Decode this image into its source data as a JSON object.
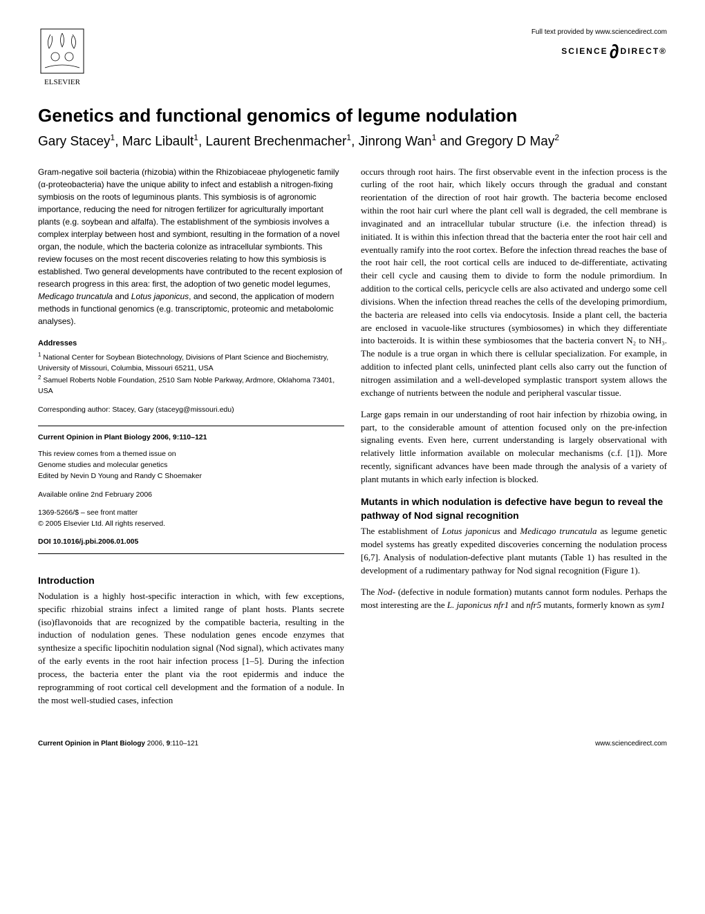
{
  "header": {
    "sd_fulltext": "Full text provided by www.sciencedirect.com",
    "sd_science": "SCIENCE",
    "sd_direct": "DIRECT®",
    "elsevier_label": "ELSEVIER"
  },
  "title": "Genetics and functional genomics of legume nodulation",
  "authors_html": "Gary Stacey<sup>1</sup>, Marc Libault<sup>1</sup>, Laurent Brechenmacher<sup>1</sup>, Jinrong Wan<sup>1</sup> and Gregory D May<sup>2</sup>",
  "abstract": "Gram-negative soil bacteria (rhizobia) within the Rhizobiaceae phylogenetic family (α-proteobacteria) have the unique ability to infect and establish a nitrogen-fixing symbiosis on the roots of leguminous plants. This symbiosis is of agronomic importance, reducing the need for nitrogen fertilizer for agriculturally important plants (e.g. soybean and alfalfa). The establishment of the symbiosis involves a complex interplay between host and symbiont, resulting in the formation of a novel organ, the nodule, which the bacteria colonize as intracellular symbionts. This review focuses on the most recent discoveries relating to how this symbiosis is established. Two general developments have contributed to the recent explosion of research progress in this area: first, the adoption of two genetic model legumes, <i>Medicago truncatula</i> and <i>Lotus japonicus</i>, and second, the application of modern methods in functional genomics (e.g. transcriptomic, proteomic and metabolomic analyses).",
  "addresses_heading": "Addresses",
  "addresses_html": "<sup>1</sup> National Center for Soybean Biotechnology, Divisions of Plant Science and Biochemistry, University of Missouri, Columbia, Missouri 65211, USA<br><sup>2</sup> Samuel Roberts Noble Foundation, 2510 Sam Noble Parkway, Ardmore, Oklahoma 73401, USA",
  "corresponding": "Corresponding author: Stacey, Gary (staceyg@missouri.edu)",
  "infobox": {
    "journal_line": "Current Opinion in Plant Biology 2006, 9:110–121",
    "theme1": "This review comes from a themed issue on",
    "theme2": "Genome studies and molecular genetics",
    "theme3": "Edited by Nevin D Young and Randy C Shoemaker",
    "online": "Available online 2nd February 2006",
    "issn": "1369-5266/$ – see front matter",
    "copyright": "© 2005 Elsevier Ltd. All rights reserved.",
    "doi": "DOI 10.1016/j.pbi.2006.01.005"
  },
  "sections": {
    "intro_h": "Introduction",
    "intro_p1": "Nodulation is a highly host-specific interaction in which, with few exceptions, specific rhizobial strains infect a limited range of plant hosts. Plants secrete (iso)flavonoids that are recognized by the compatible bacteria, resulting in the induction of nodulation genes. These nodulation genes encode enzymes that synthesize a specific lipochitin nodulation signal (Nod signal), which activates many of the early events in the root hair infection process [1–5]. During the infection process, the bacteria enter the plant via the root epidermis and induce the reprogramming of root cortical cell development and the formation of a nodule. In the most well-studied cases, infection",
    "col2_p1": "occurs through root hairs. The first observable event in the infection process is the curling of the root hair, which likely occurs through the gradual and constant reorientation of the direction of root hair growth. The bacteria become enclosed within the root hair curl where the plant cell wall is degraded, the cell membrane is invaginated and an intracellular tubular structure (i.e. the infection thread) is initiated. It is within this infection thread that the bacteria enter the root hair cell and eventually ramify into the root cortex. Before the infection thread reaches the base of the root hair cell, the root cortical cells are induced to de-differentiate, activating their cell cycle and causing them to divide to form the nodule primordium. In addition to the cortical cells, pericycle cells are also activated and undergo some cell divisions. When the infection thread reaches the cells of the developing primordium, the bacteria are released into cells via endocytosis. Inside a plant cell, the bacteria are enclosed in vacuole-like structures (symbiosomes) in which they differentiate into bacteroids. It is within these symbiosomes that the bacteria convert N₂ to NH₃. The nodule is a true organ in which there is cellular specialization. For example, in addition to infected plant cells, uninfected plant cells also carry out the function of nitrogen assimilation and a well-developed symplastic transport system allows the exchange of nutrients between the nodule and peripheral vascular tissue.",
    "col2_p2": "Large gaps remain in our understanding of root hair infection by rhizobia owing, in part, to the considerable amount of attention focused only on the pre-infection signaling events. Even here, current understanding is largely observational with relatively little information available on molecular mechanisms (c.f. [1]). More recently, significant advances have been made through the analysis of a variety of plant mutants in which early infection is blocked.",
    "mutants_h": "Mutants in which nodulation is defective have begun to reveal the pathway of Nod signal recognition",
    "mutants_p1_html": "The establishment of <i>Lotus japonicus</i> and <i>Medicago truncatula</i> as legume genetic model systems has greatly expedited discoveries concerning the nodulation process [6,7]. Analysis of nodulation-defective plant mutants (Table 1) has resulted in the development of a rudimentary pathway for Nod signal recognition (Figure 1).",
    "mutants_p2_html": "The <i>Nod-</i> (defective in nodule formation) mutants cannot form nodules. Perhaps the most interesting are the <i>L. japonicus nfr1</i> and <i>nfr5</i> mutants, formerly known as <i>sym1</i>"
  },
  "footer": {
    "left_html": "<b>Current Opinion in Plant Biology</b> 2006, <b>9</b>:110–121",
    "right": "www.sciencedirect.com"
  },
  "colors": {
    "text": "#000000",
    "background": "#ffffff",
    "logo_orange": "#e07b2e"
  }
}
